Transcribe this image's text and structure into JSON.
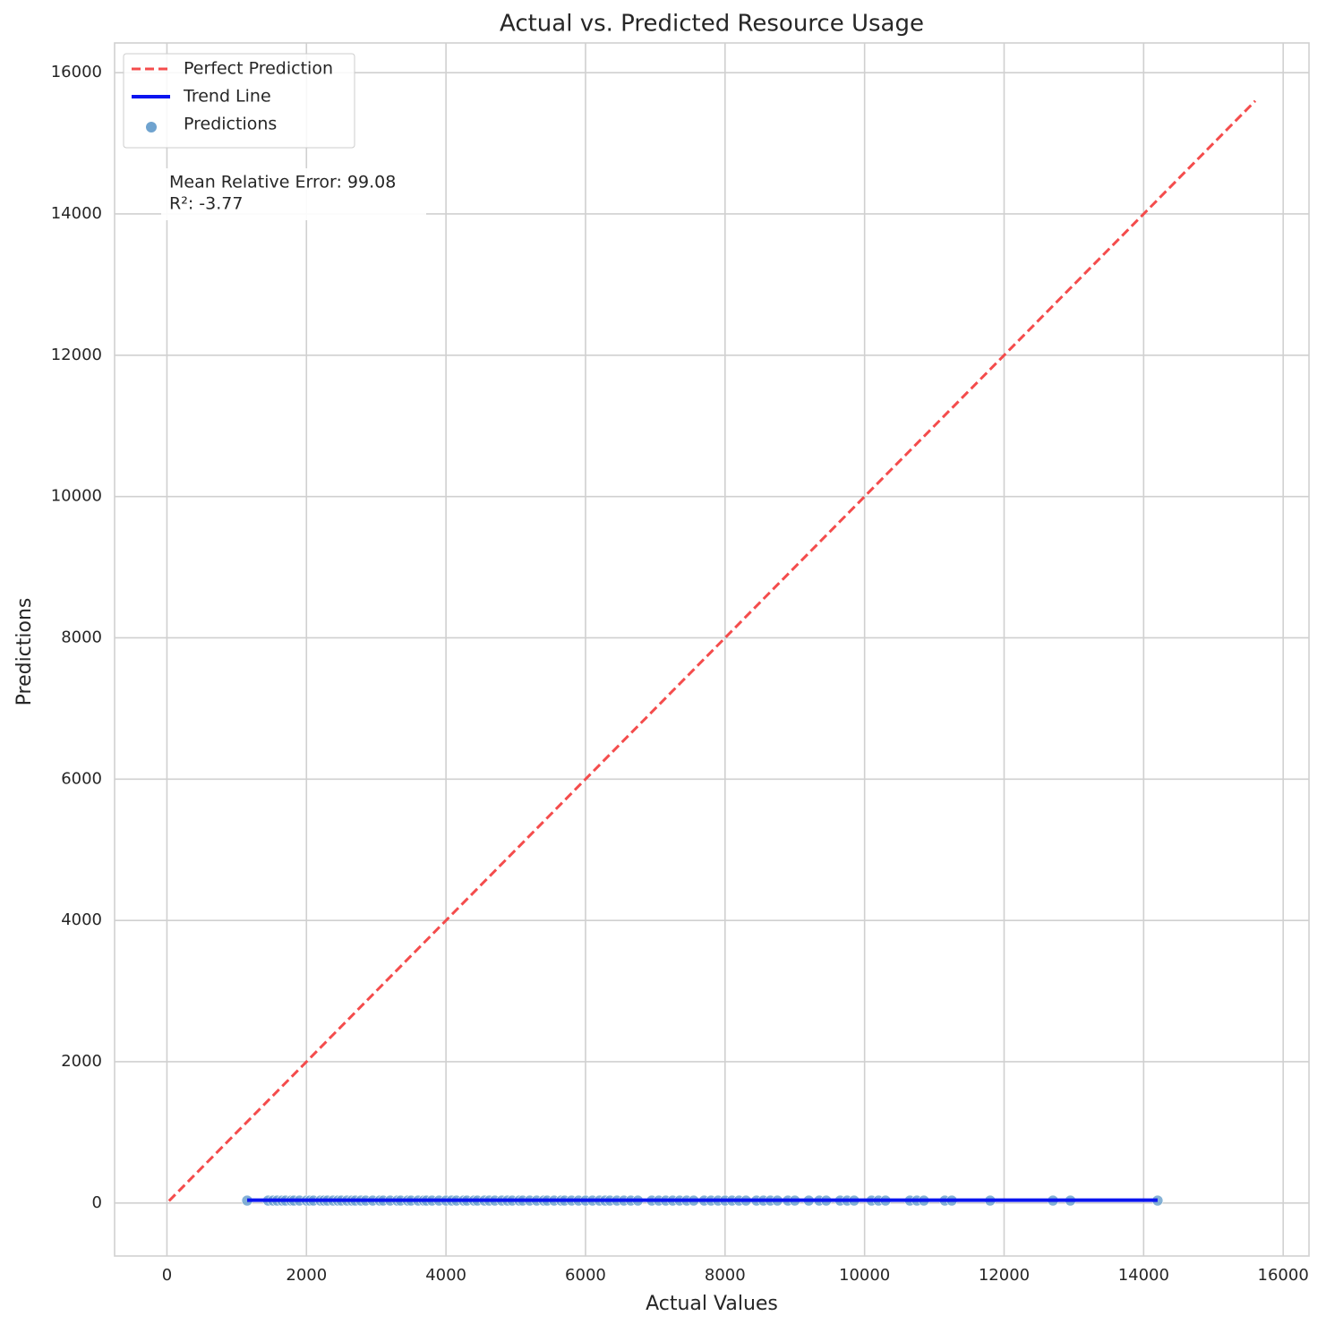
{
  "chart_data": {
    "type": "scatter",
    "title": "Actual vs. Predicted Resource Usage",
    "x_label": "Actual Values",
    "y_label": "Predictions",
    "xlim": [
      -750,
      16370
    ],
    "ylim": [
      -750,
      16420
    ],
    "xticks": [
      0,
      2000,
      4000,
      6000,
      8000,
      10000,
      12000,
      14000,
      16000
    ],
    "yticks": [
      0,
      2000,
      4000,
      6000,
      8000,
      10000,
      12000,
      14000,
      16000
    ],
    "grid": true,
    "legend": "upper left",
    "annotations": [
      "Mean Relative Error: 99.08",
      "R²: -3.77"
    ],
    "series": [
      {
        "name": "Perfect Prediction",
        "type": "line",
        "style": "dashed",
        "color": "#f44c4c",
        "x": [
          30,
          15600
        ],
        "values": [
          30,
          15600
        ]
      },
      {
        "name": "Trend Line",
        "type": "line",
        "style": "solid",
        "color": "#0a14f0",
        "x": [
          1150,
          14200
        ],
        "values": [
          40,
          40
        ]
      },
      {
        "name": "Predictions",
        "type": "scatter",
        "color": "#6fa3cf",
        "x": [
          1150,
          1450,
          1520,
          1580,
          1650,
          1700,
          1780,
          1820,
          1900,
          2000,
          2050,
          2100,
          2200,
          2250,
          2300,
          2380,
          2450,
          2500,
          2580,
          2650,
          2700,
          2780,
          2850,
          2950,
          3050,
          3100,
          3200,
          3300,
          3350,
          3450,
          3500,
          3600,
          3680,
          3720,
          3800,
          3900,
          4000,
          4080,
          4150,
          4250,
          4300,
          4400,
          4450,
          4550,
          4620,
          4700,
          4800,
          4880,
          4950,
          5050,
          5100,
          5200,
          5300,
          5400,
          5450,
          5550,
          5650,
          5700,
          5800,
          5900,
          6000,
          6100,
          6200,
          6280,
          6350,
          6450,
          6550,
          6650,
          6750,
          6950,
          7050,
          7150,
          7250,
          7350,
          7450,
          7550,
          7700,
          7800,
          7900,
          8000,
          8100,
          8200,
          8300,
          8450,
          8550,
          8650,
          8750,
          8900,
          9000,
          9200,
          9350,
          9450,
          9650,
          9750,
          9850,
          10100,
          10200,
          10300,
          10650,
          10750,
          10850,
          11150,
          11250,
          11800,
          12700,
          12950,
          14200
        ],
        "values": [
          35,
          35,
          35,
          35,
          35,
          35,
          35,
          35,
          35,
          35,
          35,
          35,
          35,
          35,
          35,
          35,
          35,
          35,
          35,
          35,
          35,
          35,
          35,
          35,
          35,
          35,
          35,
          35,
          35,
          35,
          35,
          35,
          35,
          35,
          35,
          35,
          35,
          35,
          35,
          35,
          35,
          35,
          35,
          35,
          35,
          35,
          35,
          35,
          35,
          35,
          35,
          35,
          35,
          35,
          35,
          35,
          35,
          35,
          35,
          35,
          35,
          35,
          35,
          35,
          35,
          35,
          35,
          35,
          35,
          35,
          35,
          35,
          35,
          35,
          35,
          35,
          35,
          35,
          35,
          35,
          35,
          35,
          35,
          35,
          35,
          35,
          35,
          35,
          35,
          35,
          35,
          35,
          35,
          35,
          35,
          35,
          35,
          35,
          35,
          35,
          35,
          35,
          35,
          35,
          35,
          35,
          35
        ]
      }
    ]
  }
}
